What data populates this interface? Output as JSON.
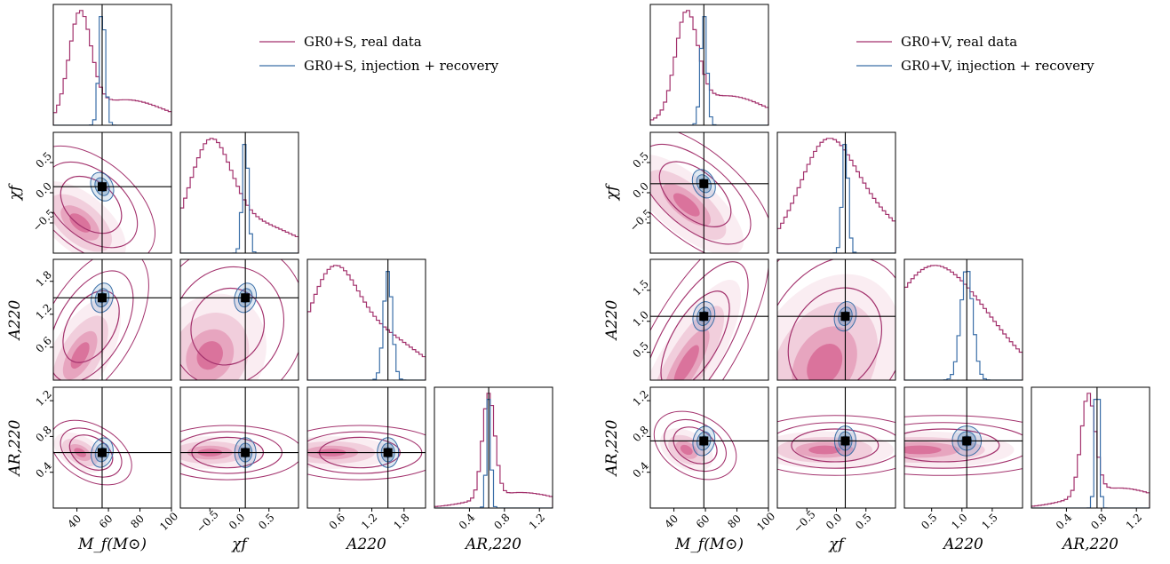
{
  "colors": {
    "real": "#a3326d",
    "injection": "#3b6fa8",
    "truth_line": "#000000",
    "fill_real": "#c2185b",
    "fill_inj": "#4f83b5"
  },
  "chart_data": [
    {
      "type": "corner",
      "legend": [
        "GR0+S, real data",
        "GR0+S, injection + recovery"
      ],
      "legend_placement": "top-right",
      "params": [
        "M_f(M_⊙)",
        "χ_f",
        "A_220",
        "A_R,220"
      ],
      "xlabels": [
        "M_f(M⊙)",
        "χf",
        "A220",
        "AR,220"
      ],
      "ylabels": [
        "χf",
        "A220",
        "AR,220"
      ],
      "truth": [
        56,
        0.1,
        1.5,
        0.62
      ],
      "ranges": [
        [
          25,
          100
        ],
        [
          -1.0,
          1.0
        ],
        [
          0.0,
          2.2
        ],
        [
          0.0,
          1.35
        ]
      ],
      "ticks": [
        [
          40,
          60,
          80,
          100
        ],
        [
          -0.5,
          0.0,
          0.5
        ],
        [
          0.6,
          1.2,
          1.8
        ],
        [
          0.4,
          0.8,
          1.2
        ]
      ],
      "tick_labels": [
        [
          "40",
          "60",
          "80",
          "100"
        ],
        [
          "−0.5",
          "0.0",
          "0.5"
        ],
        [
          "0.6",
          "1.2",
          "1.8"
        ],
        [
          "0.4",
          "0.8",
          "1.2"
        ]
      ],
      "real_peaks": [
        42,
        -0.5,
        0.45,
        0.62
      ],
      "real_widths": [
        7,
        0.35,
        0.45,
        0.07
      ],
      "inj_widths": [
        2,
        0.05,
        0.08,
        0.025
      ],
      "real_tails": [
        0.25,
        0.3,
        0.5,
        0.15
      ]
    },
    {
      "type": "corner",
      "legend": [
        "GR0+V, real data",
        "GR0+V, injection + recovery"
      ],
      "legend_placement": "top-right",
      "params": [
        "M_f(M_⊙)",
        "χ_f",
        "A_220",
        "A_R,220"
      ],
      "xlabels": [
        "M_f(M⊙)",
        "χf",
        "A220",
        "AR,220"
      ],
      "ylabels": [
        "χf",
        "A220",
        "AR,220"
      ],
      "truth": [
        59,
        0.15,
        1.08,
        0.75
      ],
      "ranges": [
        [
          25,
          100
        ],
        [
          -1.0,
          1.0
        ],
        [
          0.05,
          2.0
        ],
        [
          0.0,
          1.35
        ]
      ],
      "ticks": [
        [
          40,
          60,
          80,
          100
        ],
        [
          -0.5,
          0.0,
          0.5
        ],
        [
          0.5,
          1.0,
          1.5
        ],
        [
          0.4,
          0.8,
          1.2
        ]
      ],
      "tick_labels": [
        [
          "40",
          "60",
          "80",
          "100"
        ],
        [
          "−0.5",
          "0.0",
          "0.5"
        ],
        [
          "0.5",
          "1.0",
          "1.5"
        ],
        [
          "0.4",
          "0.8",
          "1.2"
        ]
      ],
      "real_peaks": [
        48,
        -0.2,
        0.3,
        0.65
      ],
      "real_widths": [
        7,
        0.45,
        0.6,
        0.08
      ],
      "inj_widths": [
        2,
        0.05,
        0.1,
        0.025
      ],
      "real_tails": [
        0.3,
        0.5,
        0.7,
        0.2
      ]
    }
  ]
}
